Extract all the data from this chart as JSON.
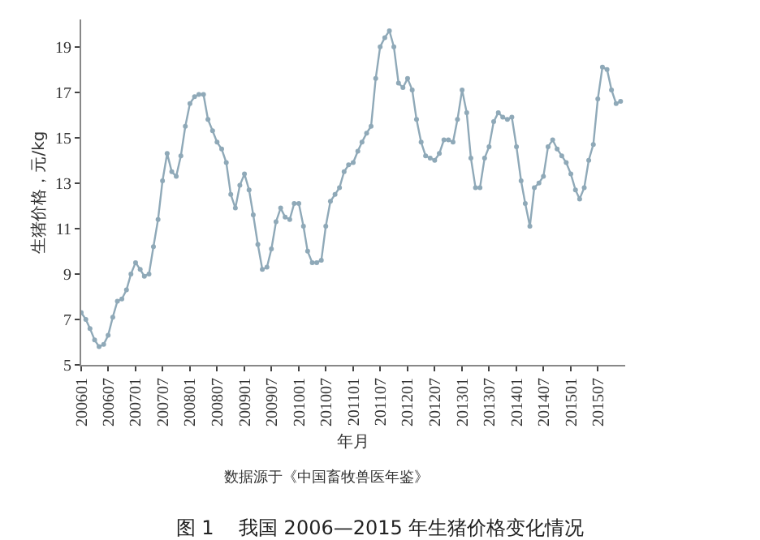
{
  "chart_data": {
    "type": "line",
    "title": "图 1    我国 2006—2015 年生猪价格变化情况",
    "xlabel": "年月",
    "ylabel": "生猪价格，元/kg",
    "annotations": [
      "数据源于《中国畜牧兽医年鉴》"
    ],
    "x": [
      "2006-01",
      "2006-02",
      "2006-03",
      "2006-04",
      "2006-05",
      "2006-06",
      "2006-07",
      "2006-08",
      "2006-09",
      "2006-10",
      "2006-11",
      "2006-12",
      "2007-01",
      "2007-02",
      "2007-03",
      "2007-04",
      "2007-05",
      "2007-06",
      "2007-07",
      "2007-08",
      "2007-09",
      "2007-10",
      "2007-11",
      "2007-12",
      "2008-01",
      "2008-02",
      "2008-03",
      "2008-04",
      "2008-05",
      "2008-06",
      "2008-07",
      "2008-08",
      "2008-09",
      "2008-10",
      "2008-11",
      "2008-12",
      "2009-01",
      "2009-02",
      "2009-03",
      "2009-04",
      "2009-05",
      "2009-06",
      "2009-07",
      "2009-08",
      "2009-09",
      "2009-10",
      "2009-11",
      "2009-12",
      "2010-01",
      "2010-02",
      "2010-03",
      "2010-04",
      "2010-05",
      "2010-06",
      "2010-07",
      "2010-08",
      "2010-09",
      "2010-10",
      "2010-11",
      "2010-12",
      "2011-01",
      "2011-02",
      "2011-03",
      "2011-04",
      "2011-05",
      "2011-06",
      "2011-07",
      "2011-08",
      "2011-09",
      "2011-10",
      "2011-11",
      "2011-12",
      "2012-01",
      "2012-02",
      "2012-03",
      "2012-04",
      "2012-05",
      "2012-06",
      "2012-07",
      "2012-08",
      "2012-09",
      "2012-10",
      "2012-11",
      "2012-12",
      "2013-01",
      "2013-02",
      "2013-03",
      "2013-04",
      "2013-05",
      "2013-06",
      "2013-07",
      "2013-08",
      "2013-09",
      "2013-10",
      "2013-11",
      "2013-12",
      "2014-01",
      "2014-02",
      "2014-03",
      "2014-04",
      "2014-05",
      "2014-06",
      "2014-07",
      "2014-08",
      "2014-09",
      "2014-10",
      "2014-11",
      "2014-12",
      "2015-01",
      "2015-02",
      "2015-03",
      "2015-04",
      "2015-05",
      "2015-06",
      "2015-07",
      "2015-08",
      "2015-09",
      "2015-10",
      "2015-11",
      "2015-12"
    ],
    "series": [
      {
        "color": "#8fa9b8",
        "values": [
          7.3,
          7.0,
          6.6,
          6.1,
          5.8,
          5.9,
          6.3,
          7.1,
          7.8,
          7.9,
          8.3,
          9.0,
          9.5,
          9.2,
          8.9,
          9.0,
          10.2,
          11.4,
          13.1,
          14.3,
          13.5,
          13.3,
          14.2,
          15.5,
          16.5,
          16.8,
          16.9,
          16.9,
          15.8,
          15.3,
          14.8,
          14.5,
          13.9,
          12.5,
          11.9,
          12.9,
          13.4,
          12.7,
          11.6,
          10.3,
          9.2,
          9.3,
          10.1,
          11.3,
          11.9,
          11.5,
          11.4,
          12.1,
          12.1,
          11.1,
          10.0,
          9.5,
          9.5,
          9.6,
          11.1,
          12.2,
          12.5,
          12.8,
          13.5,
          13.8,
          13.9,
          14.4,
          14.8,
          15.2,
          15.5,
          17.6,
          19.0,
          19.4,
          19.7,
          19.0,
          17.4,
          17.2,
          17.6,
          17.1,
          15.8,
          14.8,
          14.2,
          14.1,
          14.0,
          14.3,
          14.9,
          14.9,
          14.8,
          15.8,
          17.1,
          16.1,
          14.1,
          12.8,
          12.8,
          14.1,
          14.6,
          15.7,
          16.1,
          15.9,
          15.8,
          15.9,
          14.6,
          13.1,
          12.1,
          11.1,
          12.8,
          13.0,
          13.3,
          14.6,
          14.9,
          14.5,
          14.2,
          13.9,
          13.4,
          12.7,
          12.3,
          12.8,
          14.0,
          14.7,
          16.7,
          18.1,
          18.0,
          17.1,
          16.5,
          16.6
        ]
      }
    ],
    "xlim": [
      "2006-01",
      "2016-01"
    ],
    "xticks": [
      {
        "value": "2006-01",
        "label": "200601"
      },
      {
        "value": "2006-07",
        "label": "200607"
      },
      {
        "value": "2007-01",
        "label": "200701"
      },
      {
        "value": "2007-07",
        "label": "200707"
      },
      {
        "value": "2008-01",
        "label": "200801"
      },
      {
        "value": "2008-07",
        "label": "200807"
      },
      {
        "value": "2009-01",
        "label": "200901"
      },
      {
        "value": "2009-07",
        "label": "200907"
      },
      {
        "value": "2010-01",
        "label": "201001"
      },
      {
        "value": "2010-07",
        "label": "201007"
      },
      {
        "value": "2011-01",
        "label": "201101"
      },
      {
        "value": "2011-07",
        "label": "201107"
      },
      {
        "value": "2012-01",
        "label": "201201"
      },
      {
        "value": "2012-07",
        "label": "201207"
      },
      {
        "value": "2013-01",
        "label": "201301"
      },
      {
        "value": "2013-07",
        "label": "201307"
      },
      {
        "value": "2014-01",
        "label": "201401"
      },
      {
        "value": "2014-07",
        "label": "201407"
      },
      {
        "value": "2015-01",
        "label": "201501"
      },
      {
        "value": "2015-07",
        "label": "201507"
      }
    ],
    "ylim": [
      5,
      20.2
    ],
    "yticks": [
      5,
      7,
      9,
      11,
      13,
      15,
      17,
      19
    ],
    "grid": false,
    "marker": "circle",
    "line_style": "solid"
  }
}
